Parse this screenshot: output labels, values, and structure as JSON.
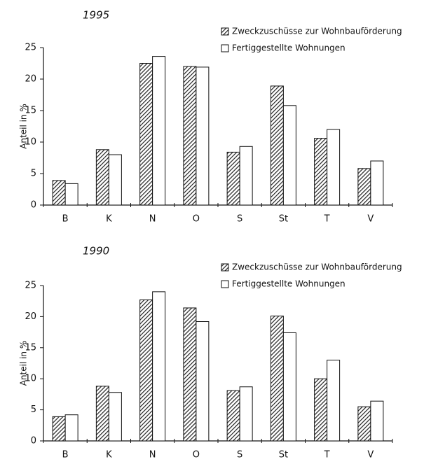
{
  "chart_data": [
    {
      "type": "bar",
      "title": "1995",
      "y_label": "Anteil in %",
      "categories": [
        "B",
        "K",
        "N",
        "O",
        "S",
        "St",
        "T",
        "V"
      ],
      "series": [
        {
          "name": "Zweckzuschüsse zur Wohnbauförderung",
          "color": "#333333",
          "hatch": true,
          "values": [
            3.9,
            8.8,
            22.5,
            22.0,
            8.4,
            18.9,
            10.6,
            5.8
          ]
        },
        {
          "name": "Fertiggestellte Wohnungen",
          "color": "#ffffff",
          "hatch": false,
          "values": [
            3.4,
            8.0,
            23.6,
            21.9,
            9.3,
            15.8,
            12.0,
            7.0
          ]
        }
      ],
      "ylim": [
        0,
        25
      ],
      "yticks": [
        0,
        5,
        10,
        15,
        20,
        25
      ],
      "grid": false,
      "legend": "upper right"
    },
    {
      "type": "bar",
      "title": "1990",
      "y_label": "Anteil in %",
      "categories": [
        "B",
        "K",
        "N",
        "O",
        "S",
        "St",
        "T",
        "V"
      ],
      "series": [
        {
          "name": "Zweckzuschüsse zur Wohnbauförderung",
          "color": "#333333",
          "hatch": true,
          "values": [
            3.9,
            8.8,
            22.7,
            21.4,
            8.1,
            20.1,
            10.0,
            5.5
          ]
        },
        {
          "name": "Fertiggestellte Wohnungen",
          "color": "#ffffff",
          "hatch": false,
          "values": [
            4.2,
            7.8,
            24.0,
            19.2,
            8.7,
            17.4,
            13.0,
            6.4
          ]
        }
      ],
      "ylim": [
        0,
        25
      ],
      "yticks": [
        0,
        5,
        10,
        15,
        20,
        25
      ],
      "grid": false,
      "legend": "upper right"
    }
  ]
}
